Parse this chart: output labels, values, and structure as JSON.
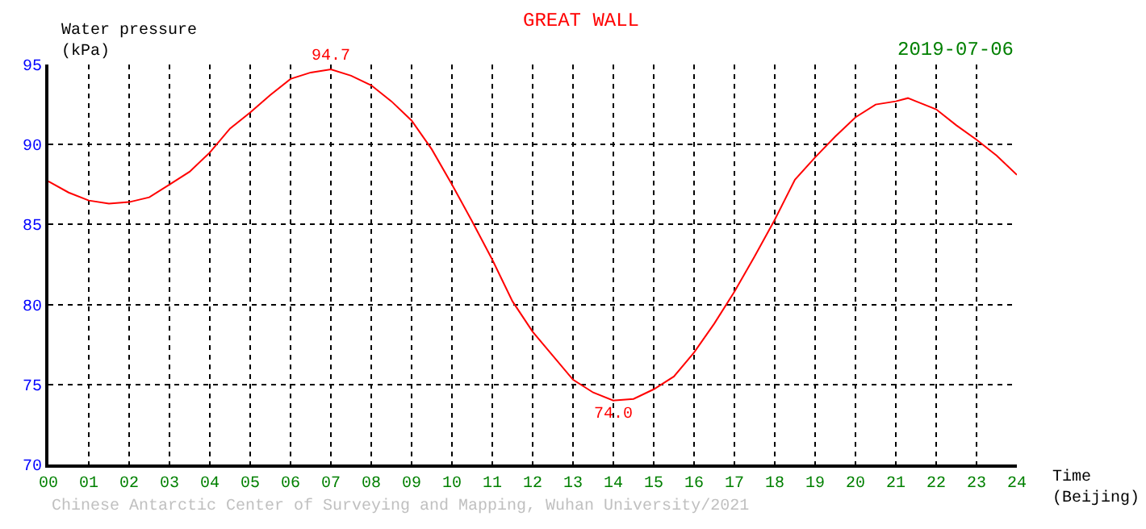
{
  "chart_data": {
    "type": "line",
    "title": "GREAT WALL",
    "subtitle": "2019-07-06",
    "xlabel": "Time\n(Beijing)",
    "ylabel": "Water pressure\n(kPa)",
    "x": [
      0,
      0.5,
      1,
      1.5,
      2,
      2.5,
      3,
      3.5,
      4,
      4.5,
      5,
      5.5,
      6,
      6.5,
      7,
      7.5,
      8,
      8.5,
      9,
      9.5,
      10,
      10.5,
      11,
      11.5,
      12,
      12.5,
      13,
      13.5,
      14,
      14.5,
      15,
      15.5,
      16,
      16.5,
      17,
      17.5,
      18,
      18.5,
      19,
      19.5,
      20,
      20.5,
      21,
      21.3,
      21.5,
      22,
      22.5,
      23,
      23.5,
      24
    ],
    "series": [
      {
        "color": "#ff0000",
        "values": [
          87.7,
          87.0,
          86.5,
          86.3,
          86.4,
          86.7,
          87.5,
          88.3,
          89.5,
          91.0,
          92.0,
          93.1,
          94.1,
          94.5,
          94.7,
          94.3,
          93.7,
          92.7,
          91.5,
          89.7,
          87.5,
          85.2,
          82.8,
          80.2,
          78.3,
          76.8,
          75.3,
          74.5,
          74.0,
          74.1,
          74.7,
          75.5,
          77.0,
          78.8,
          80.8,
          83.0,
          85.3,
          87.8,
          89.2,
          90.5,
          91.7,
          92.5,
          92.7,
          92.9,
          92.7,
          92.2,
          91.2,
          90.3,
          89.3,
          88.1
        ]
      }
    ],
    "xlim": [
      0,
      24
    ],
    "xticks": [
      {
        "value": 0,
        "label": "00"
      },
      {
        "value": 1,
        "label": "01"
      },
      {
        "value": 2,
        "label": "02"
      },
      {
        "value": 3,
        "label": "03"
      },
      {
        "value": 4,
        "label": "04"
      },
      {
        "value": 5,
        "label": "05"
      },
      {
        "value": 6,
        "label": "06"
      },
      {
        "value": 7,
        "label": "07"
      },
      {
        "value": 8,
        "label": "08"
      },
      {
        "value": 9,
        "label": "09"
      },
      {
        "value": 10,
        "label": "10"
      },
      {
        "value": 11,
        "label": "11"
      },
      {
        "value": 12,
        "label": "12"
      },
      {
        "value": 13,
        "label": "13"
      },
      {
        "value": 14,
        "label": "14"
      },
      {
        "value": 15,
        "label": "15"
      },
      {
        "value": 16,
        "label": "16"
      },
      {
        "value": 17,
        "label": "17"
      },
      {
        "value": 18,
        "label": "18"
      },
      {
        "value": 19,
        "label": "19"
      },
      {
        "value": 20,
        "label": "20"
      },
      {
        "value": 21,
        "label": "21"
      },
      {
        "value": 22,
        "label": "22"
      },
      {
        "value": 23,
        "label": "23"
      },
      {
        "value": 24,
        "label": "24"
      }
    ],
    "ylim": [
      70,
      95
    ],
    "yticks": [
      70,
      75,
      80,
      85,
      90,
      95
    ],
    "grid": true,
    "marker": "none",
    "line_style": "solid",
    "annotations": [
      {
        "text": "94.7",
        "x": 7,
        "y": 94.7
      },
      {
        "text": "74.0",
        "x": 14,
        "y": 74.0
      },
      "Chinese Antarctic Center of Surveying and Mapping, Wuhan University/2021"
    ]
  }
}
